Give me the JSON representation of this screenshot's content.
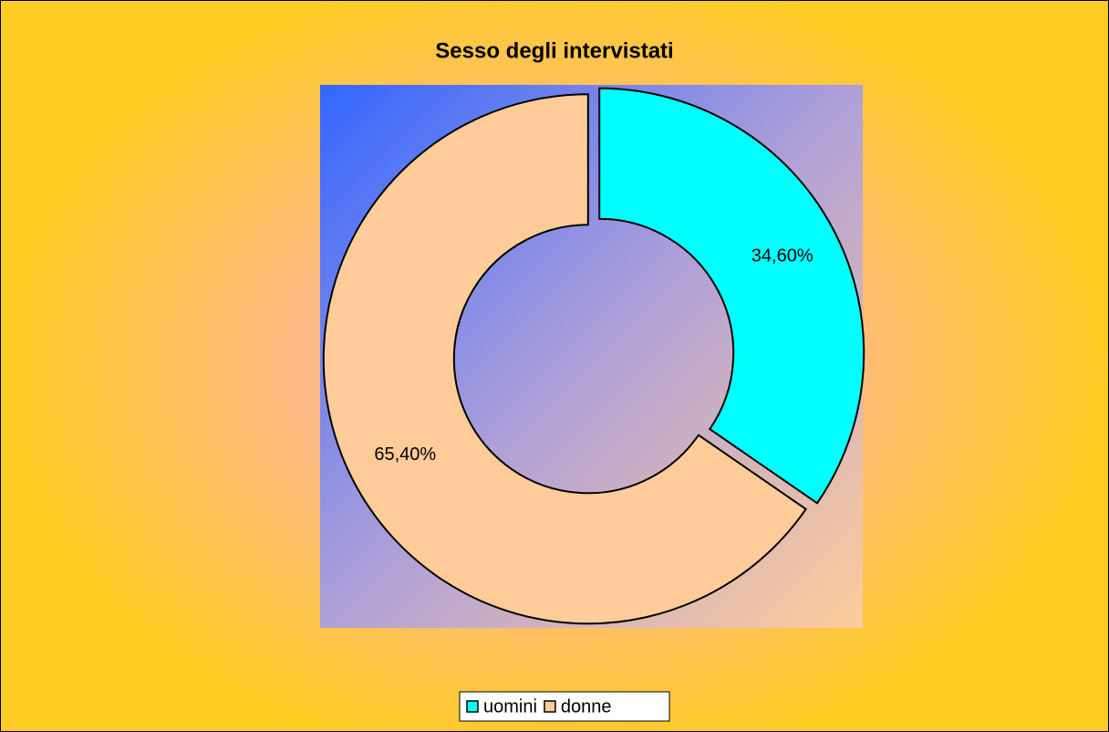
{
  "chart_data": {
    "type": "donut",
    "title": "Sesso degli intervistati",
    "categories": [
      "uomini",
      "donne"
    ],
    "values": [
      34.6,
      65.4
    ],
    "value_labels": [
      "34,60%",
      "65,40%"
    ],
    "colors": [
      "#00FFFF",
      "#FFCC99"
    ],
    "legend": "bottom"
  }
}
